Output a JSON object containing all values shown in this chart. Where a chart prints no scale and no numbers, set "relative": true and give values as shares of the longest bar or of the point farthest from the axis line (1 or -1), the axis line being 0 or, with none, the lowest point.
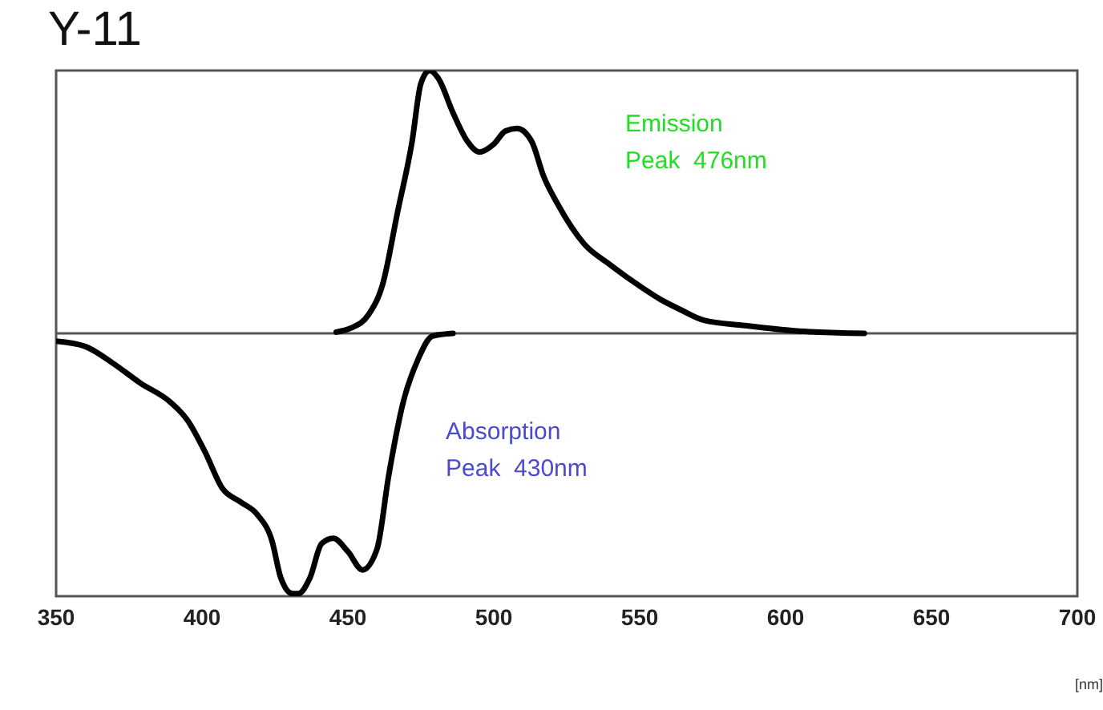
{
  "chart_data": {
    "type": "line",
    "title": "Y-11",
    "xlabel": "[nm]",
    "relative": true,
    "xlim": [
      350,
      700
    ],
    "xticks": [
      350,
      400,
      450,
      500,
      550,
      600,
      650,
      700
    ],
    "marker": "none",
    "line_style": "solid",
    "annotations": [
      "Emission\nPeak  476nm",
      "Absorption\nPeak  430nm"
    ],
    "series": [
      {
        "color": "#000000",
        "x": [
          446,
          451,
          457,
          462,
          467,
          472,
          475,
          478,
          481,
          486,
          491,
          495,
          500,
          504,
          508,
          513,
          517,
          522,
          531,
          540,
          550,
          557,
          564,
          572,
          586,
          603,
          627
        ],
        "values": [
          0.005,
          0.02,
          0.07,
          0.19,
          0.46,
          0.73,
          0.95,
          1,
          0.97,
          0.84,
          0.73,
          0.69,
          0.72,
          0.77,
          0.78,
          0.73,
          0.6,
          0.49,
          0.34,
          0.26,
          0.18,
          0.13,
          0.09,
          0.05,
          0.03,
          0.01,
          0
        ]
      },
      {
        "color": "#000000",
        "x": [
          350,
          360,
          369,
          379,
          389,
          395,
          401,
          407,
          413,
          419,
          424,
          427,
          431,
          433,
          437,
          441,
          445,
          450,
          455,
          460,
          464,
          469,
          474,
          479,
          486
        ],
        "values": [
          -0.03,
          -0.05,
          -0.11,
          -0.19,
          -0.26,
          -0.33,
          -0.45,
          -0.59,
          -0.64,
          -0.69,
          -0.79,
          -0.93,
          -0.99,
          -0.99,
          -0.93,
          -0.8,
          -0.78,
          -0.83,
          -0.9,
          -0.82,
          -0.54,
          -0.26,
          -0.1,
          -0.01,
          0
        ]
      }
    ]
  }
}
